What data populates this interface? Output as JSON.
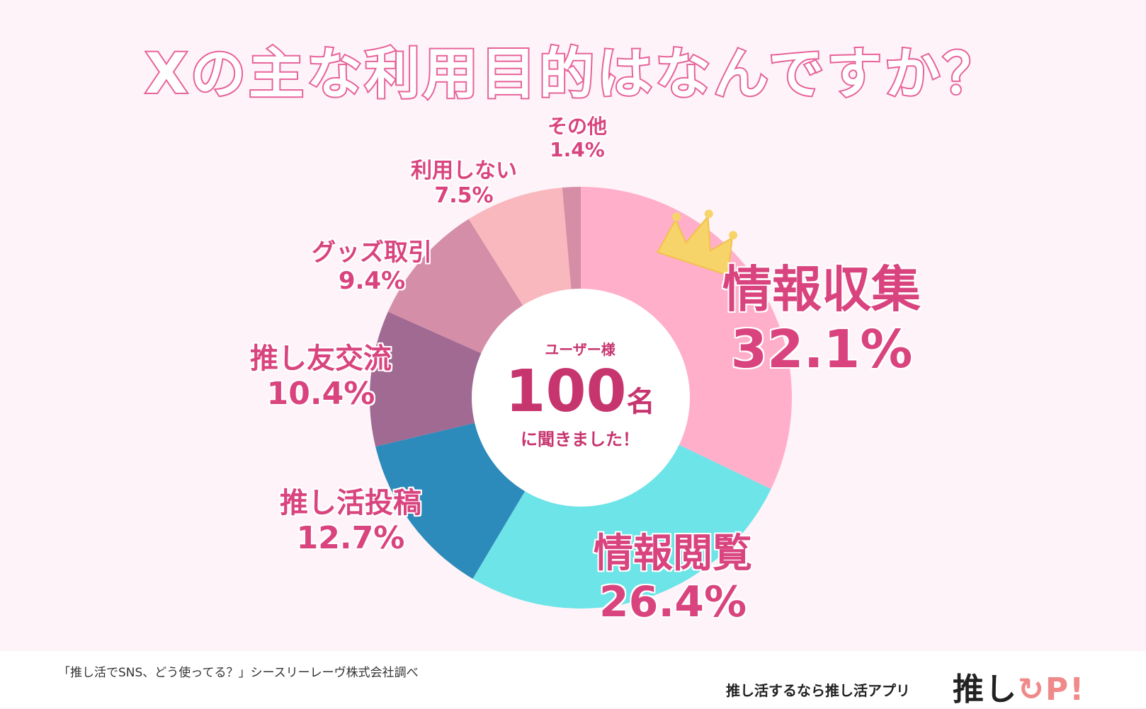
{
  "title": "Xの主な利用目的はなんですか？",
  "chart_data": {
    "type": "pie",
    "title": "Xの主な利用目的はなんですか？",
    "categories": [
      "情報収集",
      "情報閲覧",
      "推し活投稿",
      "推し友交流",
      "グッズ取引",
      "利用しない",
      "その他"
    ],
    "values": [
      32.1,
      26.4,
      12.7,
      10.4,
      9.4,
      7.5,
      1.4
    ],
    "value_labels": [
      "32.1%",
      "26.4%",
      "12.7%",
      "10.4%",
      "9.4%",
      "7.5%",
      "1.4%"
    ],
    "colors": [
      "#ffafca",
      "#6ce4e8",
      "#2c8bba",
      "#a06a93",
      "#d58ea8",
      "#f9b8bd",
      "#d68da6"
    ],
    "center": {
      "subtitle": "ユーザー様",
      "count": "100",
      "unit": "名",
      "footer": "に聞きました！"
    }
  },
  "footer": {
    "source": "「推し活でSNS、どう使ってる？」シースリーレーヴ株式会社調べ",
    "tagline": "推し活するなら推し活アプリ",
    "logo_main": "推し",
    "logo_accent": "↻P!"
  }
}
